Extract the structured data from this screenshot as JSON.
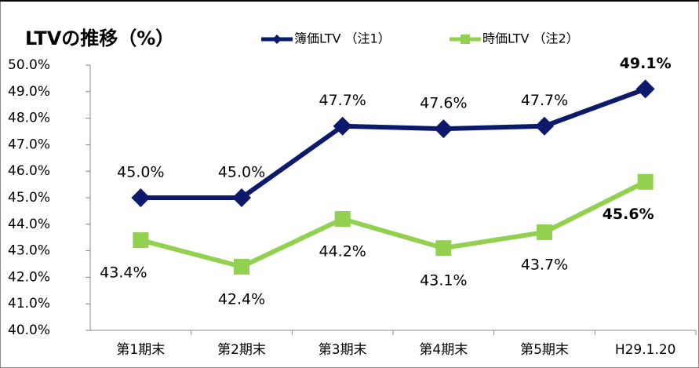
{
  "chart_data": {
    "type": "line",
    "title": "LTVの推移（%）",
    "categories": [
      "第1期末",
      "第2期末",
      "第3期末",
      "第4期末",
      "第5期末",
      "H29.1.20"
    ],
    "series": [
      {
        "name": "簿価LTV （注1）",
        "color": "#0d1a6b",
        "marker": "diamond",
        "values": [
          45.0,
          45.0,
          47.7,
          47.6,
          47.7,
          49.1
        ],
        "value_labels": [
          "45.0%",
          "45.0%",
          "47.7%",
          "47.6%",
          "47.7%",
          "49.1%"
        ]
      },
      {
        "name": "時価LTV （注2）",
        "color": "#92d050",
        "marker": "square",
        "values": [
          43.4,
          42.4,
          44.2,
          43.1,
          43.7,
          45.6
        ],
        "value_labels": [
          "43.4%",
          "42.4%",
          "44.2%",
          "43.1%",
          "43.7%",
          "45.6%"
        ]
      }
    ],
    "ylim": [
      40,
      50
    ],
    "yticks": [
      {
        "value": 40,
        "label": "40.0%"
      },
      {
        "value": 41,
        "label": "41.0%"
      },
      {
        "value": 42,
        "label": "42.0%"
      },
      {
        "value": 43,
        "label": "43.0%"
      },
      {
        "value": 44,
        "label": "44.0%"
      },
      {
        "value": 45,
        "label": "45.0%"
      },
      {
        "value": 46,
        "label": "46.0%"
      },
      {
        "value": 47,
        "label": "47.0%"
      },
      {
        "value": 48,
        "label": "48.0%"
      },
      {
        "value": 49,
        "label": "49.0%"
      },
      {
        "value": 50,
        "label": "50.0%"
      }
    ]
  }
}
